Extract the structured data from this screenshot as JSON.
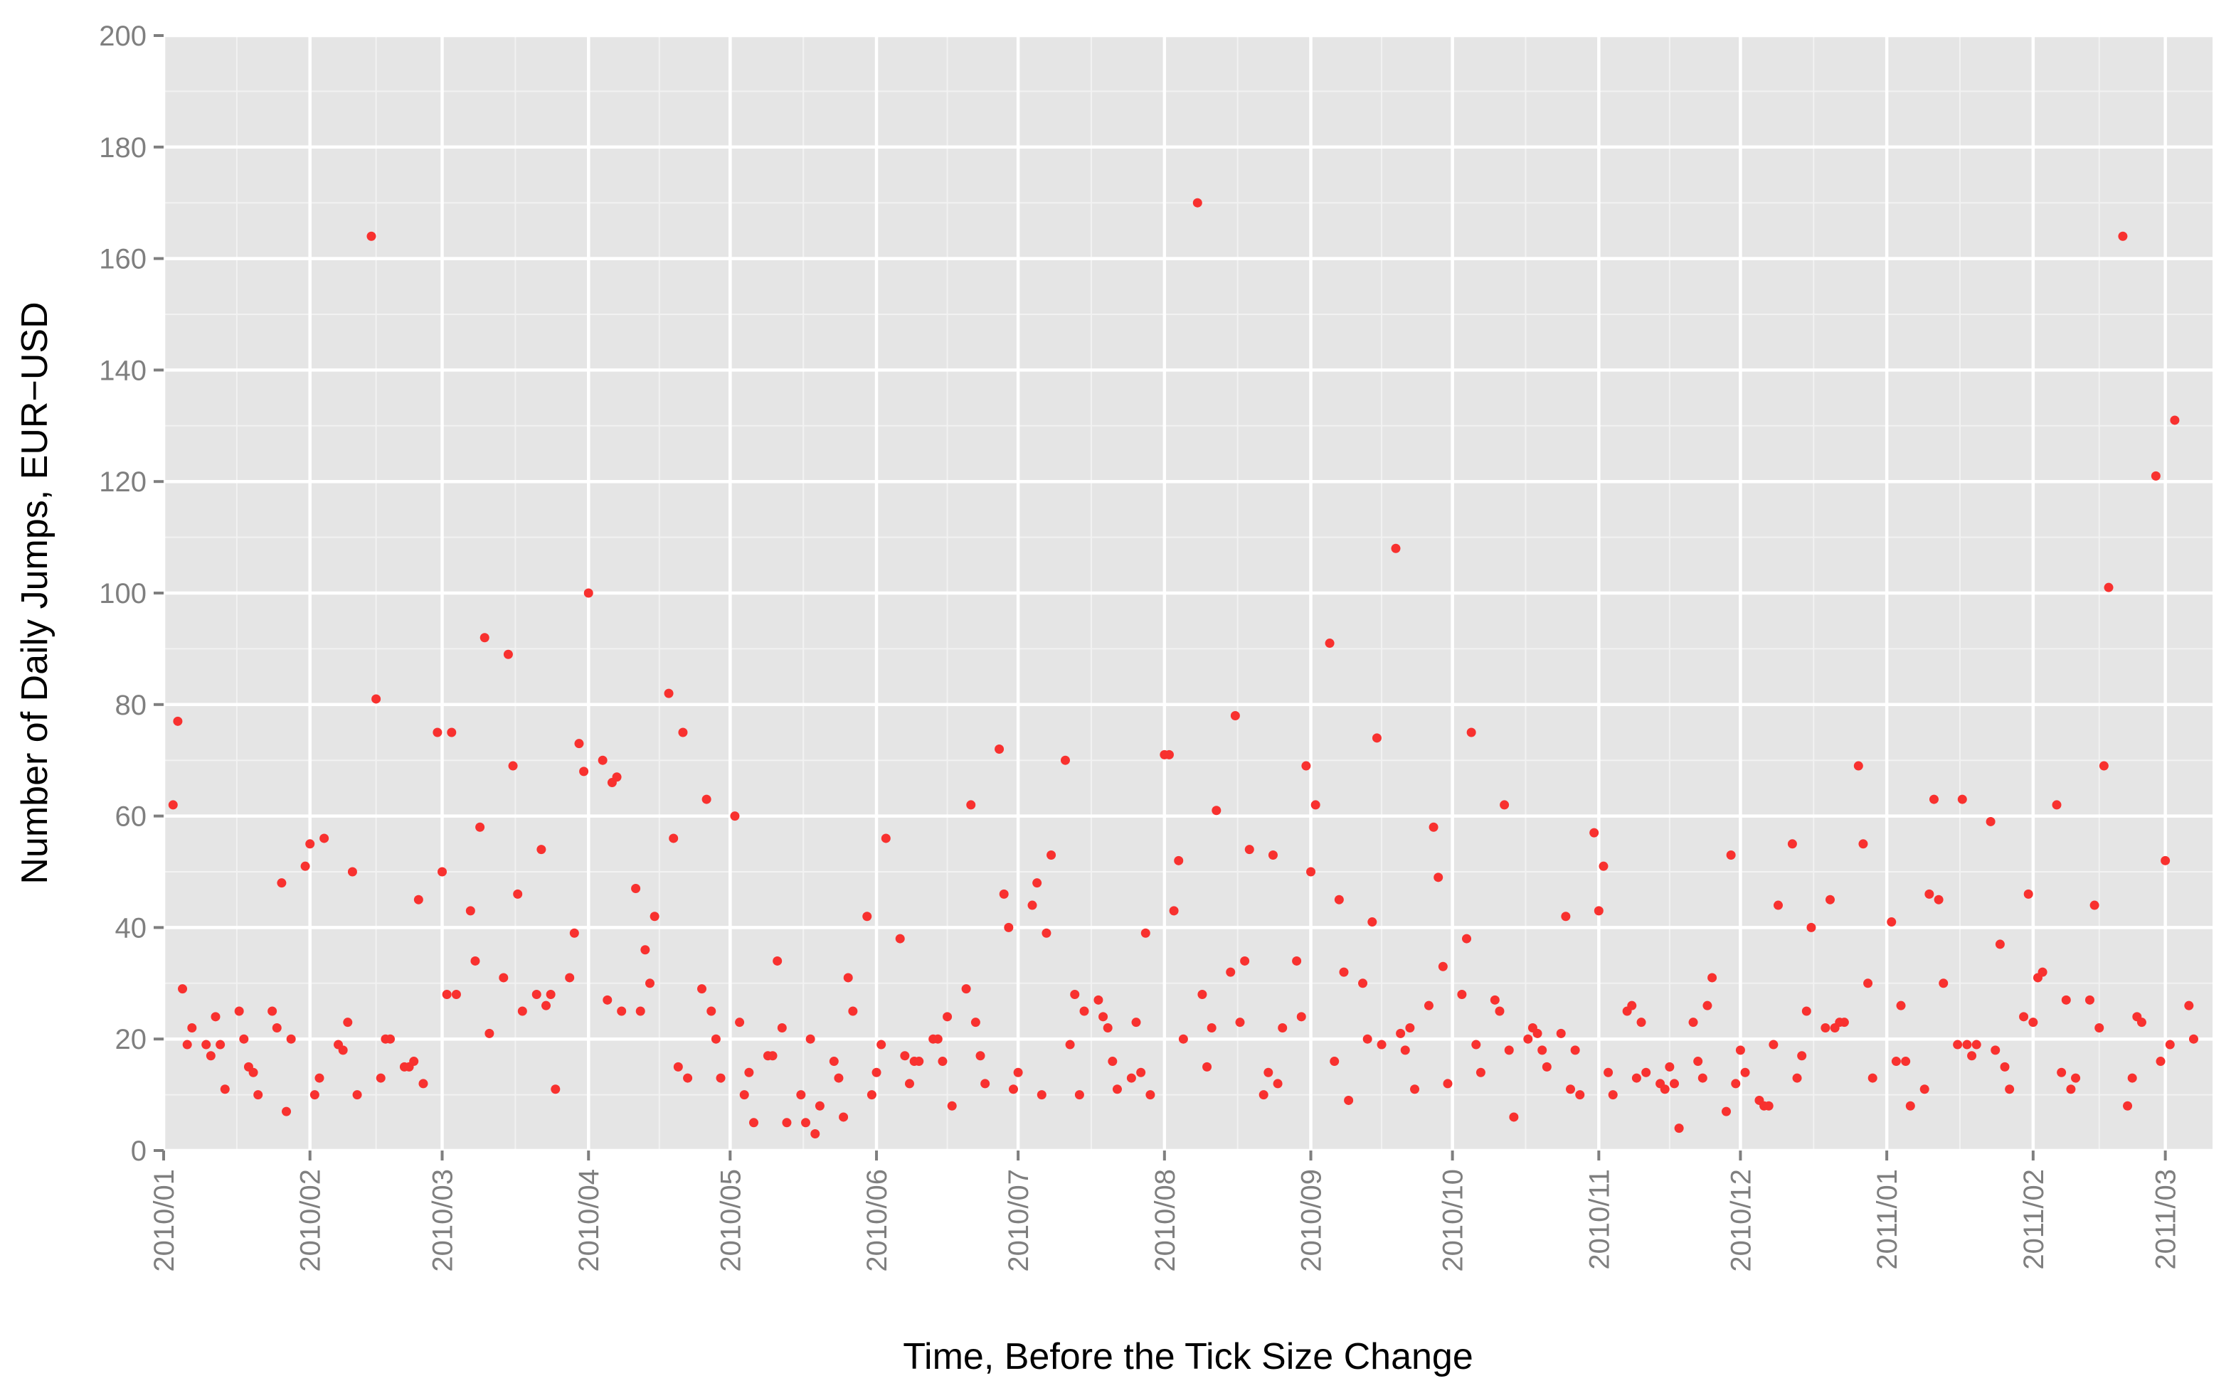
{
  "chart_data": {
    "type": "scatter",
    "title": "",
    "xlabel": "Time, Before the Tick Size Change",
    "ylabel": "Number of Daily Jumps, EUR−USD",
    "xlim": [
      "2010-01-01",
      "2011-03-11"
    ],
    "ylim": [
      0,
      200
    ],
    "yticks": [
      0,
      20,
      40,
      60,
      80,
      100,
      120,
      140,
      160,
      180,
      200
    ],
    "xticks": [
      {
        "date": "2010-01-01",
        "label": "2010/01"
      },
      {
        "date": "2010-02-01",
        "label": "2010/02"
      },
      {
        "date": "2010-03-01",
        "label": "2010/03"
      },
      {
        "date": "2010-04-01",
        "label": "2010/04"
      },
      {
        "date": "2010-05-01",
        "label": "2010/05"
      },
      {
        "date": "2010-06-01",
        "label": "2010/06"
      },
      {
        "date": "2010-07-01",
        "label": "2010/07"
      },
      {
        "date": "2010-08-01",
        "label": "2010/08"
      },
      {
        "date": "2010-09-01",
        "label": "2010/09"
      },
      {
        "date": "2010-10-01",
        "label": "2010/10"
      },
      {
        "date": "2010-11-01",
        "label": "2010/11"
      },
      {
        "date": "2010-12-01",
        "label": "2010/12"
      },
      {
        "date": "2011-01-01",
        "label": "2011/01"
      },
      {
        "date": "2011-02-01",
        "label": "2011/02"
      },
      {
        "date": "2011-03-01",
        "label": "2011/03"
      }
    ],
    "grid": true,
    "point_color": "#f8312f",
    "panel_color": "#e5e5e5",
    "grid_color": "#ffffff",
    "points": [
      [
        "2010-01-03",
        62
      ],
      [
        "2010-01-04",
        77
      ],
      [
        "2010-01-05",
        29
      ],
      [
        "2010-01-06",
        19
      ],
      [
        "2010-01-07",
        22
      ],
      [
        "2010-01-10",
        19
      ],
      [
        "2010-01-11",
        17
      ],
      [
        "2010-01-12",
        24
      ],
      [
        "2010-01-13",
        19
      ],
      [
        "2010-01-14",
        11
      ],
      [
        "2010-01-17",
        25
      ],
      [
        "2010-01-18",
        20
      ],
      [
        "2010-01-19",
        15
      ],
      [
        "2010-01-20",
        14
      ],
      [
        "2010-01-21",
        10
      ],
      [
        "2010-01-24",
        25
      ],
      [
        "2010-01-25",
        22
      ],
      [
        "2010-01-26",
        48
      ],
      [
        "2010-01-27",
        7
      ],
      [
        "2010-01-28",
        20
      ],
      [
        "2010-01-31",
        51
      ],
      [
        "2010-02-01",
        55
      ],
      [
        "2010-02-02",
        10
      ],
      [
        "2010-02-03",
        13
      ],
      [
        "2010-02-04",
        56
      ],
      [
        "2010-02-07",
        19
      ],
      [
        "2010-02-08",
        18
      ],
      [
        "2010-02-09",
        23
      ],
      [
        "2010-02-10",
        50
      ],
      [
        "2010-02-11",
        10
      ],
      [
        "2010-02-14",
        164
      ],
      [
        "2010-02-15",
        81
      ],
      [
        "2010-02-16",
        13
      ],
      [
        "2010-02-17",
        20
      ],
      [
        "2010-02-18",
        20
      ],
      [
        "2010-02-21",
        15
      ],
      [
        "2010-02-22",
        15
      ],
      [
        "2010-02-23",
        16
      ],
      [
        "2010-02-24",
        45
      ],
      [
        "2010-02-25",
        12
      ],
      [
        "2010-02-28",
        75
      ],
      [
        "2010-03-01",
        50
      ],
      [
        "2010-03-02",
        28
      ],
      [
        "2010-03-03",
        75
      ],
      [
        "2010-03-04",
        28
      ],
      [
        "2010-03-07",
        43
      ],
      [
        "2010-03-08",
        34
      ],
      [
        "2010-03-09",
        58
      ],
      [
        "2010-03-10",
        92
      ],
      [
        "2010-03-11",
        21
      ],
      [
        "2010-03-14",
        31
      ],
      [
        "2010-03-15",
        89
      ],
      [
        "2010-03-16",
        69
      ],
      [
        "2010-03-17",
        46
      ],
      [
        "2010-03-18",
        25
      ],
      [
        "2010-03-21",
        28
      ],
      [
        "2010-03-22",
        54
      ],
      [
        "2010-03-23",
        26
      ],
      [
        "2010-03-24",
        28
      ],
      [
        "2010-03-25",
        11
      ],
      [
        "2010-03-28",
        31
      ],
      [
        "2010-03-29",
        39
      ],
      [
        "2010-03-30",
        73
      ],
      [
        "2010-03-31",
        68
      ],
      [
        "2010-04-01",
        100
      ],
      [
        "2010-04-04",
        70
      ],
      [
        "2010-04-05",
        27
      ],
      [
        "2010-04-06",
        66
      ],
      [
        "2010-04-07",
        67
      ],
      [
        "2010-04-08",
        25
      ],
      [
        "2010-04-11",
        47
      ],
      [
        "2010-04-12",
        25
      ],
      [
        "2010-04-13",
        36
      ],
      [
        "2010-04-14",
        30
      ],
      [
        "2010-04-15",
        42
      ],
      [
        "2010-04-18",
        82
      ],
      [
        "2010-04-19",
        56
      ],
      [
        "2010-04-20",
        15
      ],
      [
        "2010-04-21",
        75
      ],
      [
        "2010-04-22",
        13
      ],
      [
        "2010-04-25",
        29
      ],
      [
        "2010-04-26",
        63
      ],
      [
        "2010-04-27",
        25
      ],
      [
        "2010-04-28",
        20
      ],
      [
        "2010-04-29",
        13
      ],
      [
        "2010-05-02",
        60
      ],
      [
        "2010-05-03",
        23
      ],
      [
        "2010-05-04",
        10
      ],
      [
        "2010-05-05",
        14
      ],
      [
        "2010-05-06",
        5
      ],
      [
        "2010-05-09",
        17
      ],
      [
        "2010-05-10",
        17
      ],
      [
        "2010-05-11",
        34
      ],
      [
        "2010-05-12",
        22
      ],
      [
        "2010-05-13",
        5
      ],
      [
        "2010-05-16",
        10
      ],
      [
        "2010-05-17",
        5
      ],
      [
        "2010-05-18",
        20
      ],
      [
        "2010-05-19",
        3
      ],
      [
        "2010-05-20",
        8
      ],
      [
        "2010-05-23",
        16
      ],
      [
        "2010-05-24",
        13
      ],
      [
        "2010-05-25",
        6
      ],
      [
        "2010-05-26",
        31
      ],
      [
        "2010-05-27",
        25
      ],
      [
        "2010-05-30",
        42
      ],
      [
        "2010-05-31",
        10
      ],
      [
        "2010-06-01",
        14
      ],
      [
        "2010-06-02",
        19
      ],
      [
        "2010-06-03",
        56
      ],
      [
        "2010-06-06",
        38
      ],
      [
        "2010-06-07",
        17
      ],
      [
        "2010-06-08",
        12
      ],
      [
        "2010-06-09",
        16
      ],
      [
        "2010-06-10",
        16
      ],
      [
        "2010-06-13",
        20
      ],
      [
        "2010-06-14",
        20
      ],
      [
        "2010-06-15",
        16
      ],
      [
        "2010-06-16",
        24
      ],
      [
        "2010-06-17",
        8
      ],
      [
        "2010-06-20",
        29
      ],
      [
        "2010-06-21",
        62
      ],
      [
        "2010-06-22",
        23
      ],
      [
        "2010-06-23",
        17
      ],
      [
        "2010-06-24",
        12
      ],
      [
        "2010-06-27",
        72
      ],
      [
        "2010-06-28",
        46
      ],
      [
        "2010-06-29",
        40
      ],
      [
        "2010-06-30",
        11
      ],
      [
        "2010-07-01",
        14
      ],
      [
        "2010-07-04",
        44
      ],
      [
        "2010-07-05",
        48
      ],
      [
        "2010-07-06",
        10
      ],
      [
        "2010-07-07",
        39
      ],
      [
        "2010-07-08",
        53
      ],
      [
        "2010-07-11",
        70
      ],
      [
        "2010-07-12",
        19
      ],
      [
        "2010-07-13",
        28
      ],
      [
        "2010-07-14",
        10
      ],
      [
        "2010-07-15",
        25
      ],
      [
        "2010-07-18",
        27
      ],
      [
        "2010-07-19",
        24
      ],
      [
        "2010-07-20",
        22
      ],
      [
        "2010-07-21",
        16
      ],
      [
        "2010-07-22",
        11
      ],
      [
        "2010-07-25",
        13
      ],
      [
        "2010-07-26",
        23
      ],
      [
        "2010-07-27",
        14
      ],
      [
        "2010-07-28",
        39
      ],
      [
        "2010-07-29",
        10
      ],
      [
        "2010-08-01",
        71
      ],
      [
        "2010-08-02",
        71
      ],
      [
        "2010-08-03",
        43
      ],
      [
        "2010-08-04",
        52
      ],
      [
        "2010-08-05",
        20
      ],
      [
        "2010-08-08",
        170
      ],
      [
        "2010-08-09",
        28
      ],
      [
        "2010-08-10",
        15
      ],
      [
        "2010-08-11",
        22
      ],
      [
        "2010-08-12",
        61
      ],
      [
        "2010-08-15",
        32
      ],
      [
        "2010-08-16",
        78
      ],
      [
        "2010-08-17",
        23
      ],
      [
        "2010-08-18",
        34
      ],
      [
        "2010-08-19",
        54
      ],
      [
        "2010-08-22",
        10
      ],
      [
        "2010-08-23",
        14
      ],
      [
        "2010-08-24",
        53
      ],
      [
        "2010-08-25",
        12
      ],
      [
        "2010-08-26",
        22
      ],
      [
        "2010-08-29",
        34
      ],
      [
        "2010-08-30",
        24
      ],
      [
        "2010-08-31",
        69
      ],
      [
        "2010-09-01",
        50
      ],
      [
        "2010-09-02",
        62
      ],
      [
        "2010-09-05",
        91
      ],
      [
        "2010-09-06",
        16
      ],
      [
        "2010-09-07",
        45
      ],
      [
        "2010-09-08",
        32
      ],
      [
        "2010-09-09",
        9
      ],
      [
        "2010-09-12",
        30
      ],
      [
        "2010-09-13",
        20
      ],
      [
        "2010-09-14",
        41
      ],
      [
        "2010-09-15",
        74
      ],
      [
        "2010-09-16",
        19
      ],
      [
        "2010-09-19",
        108
      ],
      [
        "2010-09-20",
        21
      ],
      [
        "2010-09-21",
        18
      ],
      [
        "2010-09-22",
        22
      ],
      [
        "2010-09-23",
        11
      ],
      [
        "2010-09-26",
        26
      ],
      [
        "2010-09-27",
        58
      ],
      [
        "2010-09-28",
        49
      ],
      [
        "2010-09-29",
        33
      ],
      [
        "2010-09-30",
        12
      ],
      [
        "2010-10-03",
        28
      ],
      [
        "2010-10-04",
        38
      ],
      [
        "2010-10-05",
        75
      ],
      [
        "2010-10-06",
        19
      ],
      [
        "2010-10-07",
        14
      ],
      [
        "2010-10-10",
        27
      ],
      [
        "2010-10-11",
        25
      ],
      [
        "2010-10-12",
        62
      ],
      [
        "2010-10-13",
        18
      ],
      [
        "2010-10-14",
        6
      ],
      [
        "2010-10-17",
        20
      ],
      [
        "2010-10-18",
        22
      ],
      [
        "2010-10-19",
        21
      ],
      [
        "2010-10-20",
        18
      ],
      [
        "2010-10-21",
        15
      ],
      [
        "2010-10-24",
        21
      ],
      [
        "2010-10-25",
        42
      ],
      [
        "2010-10-26",
        11
      ],
      [
        "2010-10-27",
        18
      ],
      [
        "2010-10-28",
        10
      ],
      [
        "2010-10-31",
        57
      ],
      [
        "2010-11-01",
        43
      ],
      [
        "2010-11-02",
        51
      ],
      [
        "2010-11-03",
        14
      ],
      [
        "2010-11-04",
        10
      ],
      [
        "2010-11-07",
        25
      ],
      [
        "2010-11-08",
        26
      ],
      [
        "2010-11-09",
        13
      ],
      [
        "2010-11-10",
        23
      ],
      [
        "2010-11-11",
        14
      ],
      [
        "2010-11-14",
        12
      ],
      [
        "2010-11-15",
        11
      ],
      [
        "2010-11-16",
        15
      ],
      [
        "2010-11-17",
        12
      ],
      [
        "2010-11-18",
        4
      ],
      [
        "2010-11-21",
        23
      ],
      [
        "2010-11-22",
        16
      ],
      [
        "2010-11-23",
        13
      ],
      [
        "2010-11-24",
        26
      ],
      [
        "2010-11-25",
        31
      ],
      [
        "2010-11-28",
        7
      ],
      [
        "2010-11-29",
        53
      ],
      [
        "2010-11-30",
        12
      ],
      [
        "2010-12-01",
        18
      ],
      [
        "2010-12-02",
        14
      ],
      [
        "2010-12-05",
        9
      ],
      [
        "2010-12-06",
        8
      ],
      [
        "2010-12-07",
        8
      ],
      [
        "2010-12-08",
        19
      ],
      [
        "2010-12-09",
        44
      ],
      [
        "2010-12-12",
        55
      ],
      [
        "2010-12-13",
        13
      ],
      [
        "2010-12-14",
        17
      ],
      [
        "2010-12-15",
        25
      ],
      [
        "2010-12-16",
        40
      ],
      [
        "2010-12-19",
        22
      ],
      [
        "2010-12-20",
        45
      ],
      [
        "2010-12-21",
        22
      ],
      [
        "2010-12-22",
        23
      ],
      [
        "2010-12-23",
        23
      ],
      [
        "2010-12-26",
        69
      ],
      [
        "2010-12-27",
        55
      ],
      [
        "2010-12-28",
        30
      ],
      [
        "2010-12-29",
        13
      ],
      [
        "2011-01-02",
        41
      ],
      [
        "2011-01-03",
        16
      ],
      [
        "2011-01-04",
        26
      ],
      [
        "2011-01-05",
        16
      ],
      [
        "2011-01-06",
        8
      ],
      [
        "2011-01-09",
        11
      ],
      [
        "2011-01-10",
        46
      ],
      [
        "2011-01-11",
        63
      ],
      [
        "2011-01-12",
        45
      ],
      [
        "2011-01-13",
        30
      ],
      [
        "2011-01-16",
        19
      ],
      [
        "2011-01-17",
        63
      ],
      [
        "2011-01-18",
        19
      ],
      [
        "2011-01-19",
        17
      ],
      [
        "2011-01-20",
        19
      ],
      [
        "2011-01-23",
        59
      ],
      [
        "2011-01-24",
        18
      ],
      [
        "2011-01-25",
        37
      ],
      [
        "2011-01-26",
        15
      ],
      [
        "2011-01-27",
        11
      ],
      [
        "2011-01-30",
        24
      ],
      [
        "2011-01-31",
        46
      ],
      [
        "2011-02-01",
        23
      ],
      [
        "2011-02-02",
        31
      ],
      [
        "2011-02-03",
        32
      ],
      [
        "2011-02-06",
        62
      ],
      [
        "2011-02-07",
        14
      ],
      [
        "2011-02-08",
        27
      ],
      [
        "2011-02-09",
        11
      ],
      [
        "2011-02-10",
        13
      ],
      [
        "2011-02-13",
        27
      ],
      [
        "2011-02-14",
        44
      ],
      [
        "2011-02-15",
        22
      ],
      [
        "2011-02-16",
        69
      ],
      [
        "2011-02-17",
        101
      ],
      [
        "2011-02-20",
        164
      ],
      [
        "2011-02-21",
        8
      ],
      [
        "2011-02-22",
        13
      ],
      [
        "2011-02-23",
        24
      ],
      [
        "2011-02-24",
        23
      ],
      [
        "2011-02-27",
        121
      ],
      [
        "2011-02-28",
        16
      ],
      [
        "2011-03-01",
        52
      ],
      [
        "2011-03-02",
        19
      ],
      [
        "2011-03-03",
        131
      ],
      [
        "2011-03-06",
        26
      ],
      [
        "2011-03-07",
        20
      ]
    ]
  }
}
